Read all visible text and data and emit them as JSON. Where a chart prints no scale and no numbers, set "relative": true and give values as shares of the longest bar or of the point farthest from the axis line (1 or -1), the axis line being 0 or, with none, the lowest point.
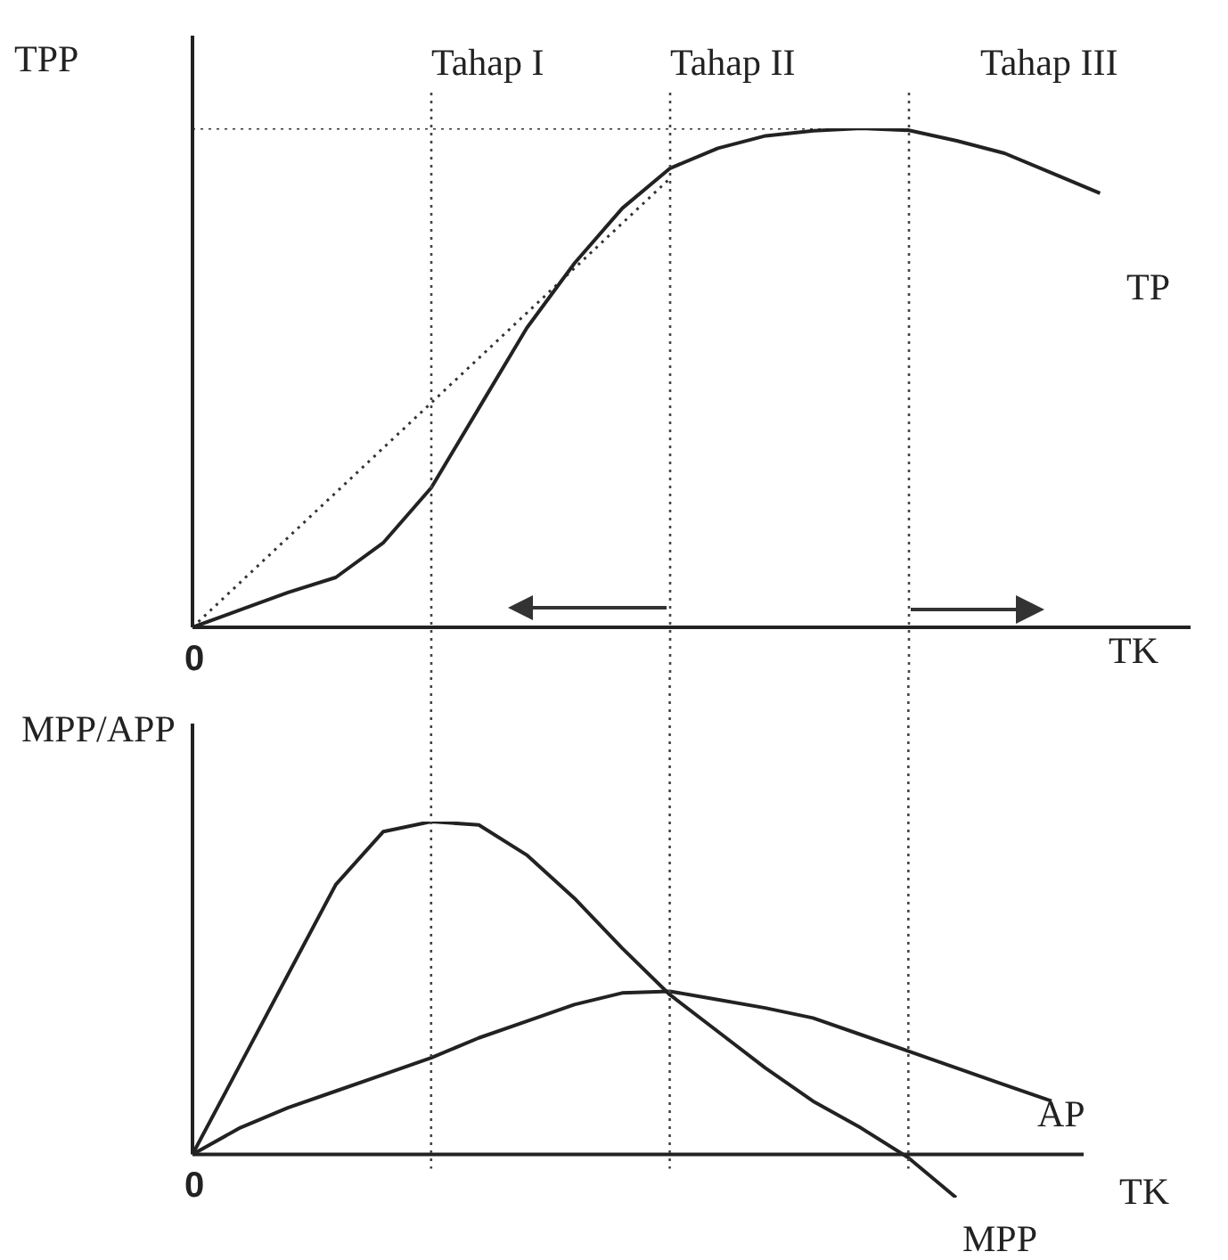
{
  "chart_data": [
    {
      "type": "line",
      "relative": true,
      "ylabel": "TPP",
      "xlabel": "TK",
      "legend": false,
      "marker": "none",
      "grid": "x",
      "categories": [
        null,
        null,
        null,
        null,
        null,
        null,
        null,
        null,
        null,
        null,
        null,
        null,
        null,
        null,
        null,
        null,
        null,
        null,
        null,
        null,
        null
      ],
      "annotations": [
        "Tahap I",
        "Tahap II",
        "Tahap III",
        "0"
      ],
      "series": [
        {
          "name": "TP",
          "color": "#222222",
          "values": [
            0,
            0.035,
            0.07,
            0.1,
            0.17,
            0.28,
            0.44,
            0.6,
            0.73,
            0.84,
            0.92,
            0.96,
            0.985,
            0.995,
            1,
            0.996,
            0.975,
            0.95,
            0.91,
            0.87,
            null
          ]
        },
        {
          "color": "#333333",
          "line_style": "dotted",
          "values": [
            0,
            0.09,
            0.18,
            0.27,
            0.36,
            0.45,
            0.54,
            0.63,
            0.72,
            0.81,
            0.9,
            null,
            null,
            null,
            null,
            null,
            null,
            null,
            null,
            null,
            null
          ]
        },
        {
          "color": "#333333",
          "line_style": "dotted",
          "values": [
            1,
            1,
            1,
            1,
            1,
            1,
            1,
            1,
            1,
            1,
            1,
            1,
            1,
            1,
            1,
            1,
            null,
            null,
            null,
            null,
            null
          ]
        }
      ]
    },
    {
      "type": "line",
      "relative": true,
      "ylabel": "MPP/APP",
      "xlabel": "TK",
      "legend": false,
      "marker": "none",
      "grid": "x",
      "categories": [
        null,
        null,
        null,
        null,
        null,
        null,
        null,
        null,
        null,
        null,
        null,
        null,
        null,
        null,
        null,
        null,
        null,
        null,
        null
      ],
      "annotations": [
        "0"
      ],
      "series": [
        {
          "name": "MPP",
          "color": "#222222",
          "values": [
            0,
            0.27,
            0.54,
            0.81,
            0.97,
            1,
            0.99,
            0.9,
            0.77,
            0.62,
            0.48,
            0.37,
            0.26,
            0.16,
            0.08,
            -0.01,
            -0.13,
            null,
            null
          ]
        },
        {
          "name": "AP",
          "color": "#222222",
          "values": [
            0,
            0.08,
            0.14,
            0.19,
            0.24,
            0.29,
            0.35,
            0.4,
            0.45,
            0.485,
            0.49,
            0.465,
            0.44,
            0.41,
            0.36,
            0.31,
            0.26,
            0.21,
            0.16
          ]
        }
      ]
    }
  ]
}
